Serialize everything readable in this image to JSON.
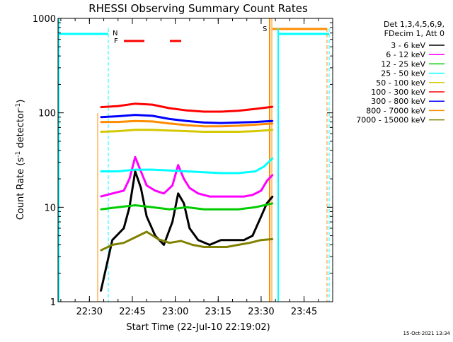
{
  "chart_data": {
    "type": "line",
    "title": "RHESSI Observing Summary Count Rates",
    "xlabel": "Start Time (22-Jul-10 22:19:02)",
    "ylabel_main": "Count Rate (s",
    "ylabel_sup1": "-1",
    "ylabel_mid": " detector",
    "ylabel_sup2": "-1",
    "ylabel_end": ")",
    "yscale": "log",
    "ylim": [
      1,
      1000
    ],
    "xlim": [
      "22:19:02",
      "23:55:00"
    ],
    "x_tick_labels": [
      "22:30",
      "22:45",
      "23:00",
      "23:15",
      "23:30",
      "23:45"
    ],
    "y_tick_labels": [
      "1",
      "10",
      "100",
      "1000"
    ],
    "legend_header": [
      "Det 1,3,4,5,6,9,",
      "FDecim 1, Att 0"
    ],
    "legend_position": "right",
    "timestamp": "15-Oct-2021 13:34",
    "series": [
      {
        "name": "3 - 6 keV",
        "color": "#000000",
        "x": [
          "22:34",
          "22:38",
          "22:42",
          "22:44",
          "22:46",
          "22:48",
          "22:50",
          "22:53",
          "22:56",
          "22:59",
          "23:01",
          "23:03",
          "23:05",
          "23:08",
          "23:12",
          "23:16",
          "23:20",
          "23:24",
          "23:27",
          "23:30",
          "23:32",
          "23:34"
        ],
        "y": [
          1.3,
          4.5,
          6,
          10,
          24,
          16,
          8,
          5,
          4,
          7,
          14,
          11,
          6,
          4.5,
          4,
          4.5,
          4.5,
          4.5,
          5,
          8,
          11,
          13
        ]
      },
      {
        "name": "6 - 12 keV",
        "color": "#ff00ff",
        "x": [
          "22:34",
          "22:38",
          "22:42",
          "22:44",
          "22:46",
          "22:48",
          "22:50",
          "22:53",
          "22:56",
          "22:59",
          "23:01",
          "23:03",
          "23:05",
          "23:08",
          "23:12",
          "23:16",
          "23:20",
          "23:24",
          "23:27",
          "23:30",
          "23:32",
          "23:34"
        ],
        "y": [
          13,
          14,
          15,
          20,
          34,
          24,
          17,
          15,
          14,
          17,
          28,
          20,
          16,
          14,
          13,
          13,
          13,
          13,
          13.5,
          15,
          19,
          22
        ]
      },
      {
        "name": "12 - 25 keV",
        "color": "#00cc00",
        "x": [
          "22:34",
          "22:40",
          "22:46",
          "22:52",
          "22:58",
          "23:04",
          "23:10",
          "23:16",
          "23:22",
          "23:28",
          "23:34"
        ],
        "y": [
          9.5,
          10,
          10.5,
          10,
          9.5,
          10,
          9.5,
          9.5,
          9.5,
          10,
          11
        ]
      },
      {
        "name": "25 - 50 keV",
        "color": "#00ffff",
        "x": [
          "22:34",
          "22:40",
          "22:46",
          "22:52",
          "22:58",
          "23:04",
          "23:10",
          "23:16",
          "23:22",
          "23:28",
          "23:31",
          "23:34"
        ],
        "y": [
          24,
          24,
          25,
          25,
          24.5,
          24,
          23.5,
          23,
          23,
          24,
          27,
          33
        ]
      },
      {
        "name": "50 - 100 keV",
        "color": "#d4c800",
        "x": [
          "22:34",
          "22:40",
          "22:46",
          "22:52",
          "22:58",
          "23:04",
          "23:10",
          "23:16",
          "23:22",
          "23:28",
          "23:34"
        ],
        "y": [
          63,
          64,
          66,
          66,
          65,
          64,
          63,
          63,
          63,
          64,
          66
        ]
      },
      {
        "name": "100 - 300 keV",
        "color": "#ff0000",
        "x": [
          "22:34",
          "22:40",
          "22:46",
          "22:52",
          "22:58",
          "23:04",
          "23:10",
          "23:16",
          "23:22",
          "23:28",
          "23:34"
        ],
        "y": [
          115,
          118,
          125,
          122,
          112,
          106,
          103,
          103,
          105,
          110,
          116
        ]
      },
      {
        "name": "300 - 800 keV",
        "color": "#0000ff",
        "x": [
          "22:34",
          "22:40",
          "22:46",
          "22:52",
          "22:58",
          "23:04",
          "23:10",
          "23:16",
          "23:22",
          "23:28",
          "23:34"
        ],
        "y": [
          90,
          92,
          95,
          93,
          86,
          82,
          79,
          78,
          79,
          80,
          82
        ]
      },
      {
        "name": "800 - 7000 keV",
        "color": "#ff8c00",
        "x": [
          "22:34",
          "22:40",
          "22:46",
          "22:52",
          "22:58",
          "23:04",
          "23:10",
          "23:16",
          "23:22",
          "23:28",
          "23:34"
        ],
        "y": [
          80,
          80,
          82,
          81,
          77,
          74,
          72,
          72,
          73,
          75,
          77
        ]
      },
      {
        "name": "7000 - 15000 keV",
        "color": "#808000",
        "x": [
          "22:34",
          "22:38",
          "22:42",
          "22:46",
          "22:50",
          "22:54",
          "22:58",
          "23:02",
          "23:06",
          "23:10",
          "23:14",
          "23:18",
          "23:22",
          "23:26",
          "23:30",
          "23:34"
        ],
        "y": [
          3.5,
          4,
          4.2,
          4.8,
          5.5,
          4.6,
          4.2,
          4.4,
          4,
          3.8,
          3.8,
          3.8,
          4,
          4.2,
          4.5,
          4.6
        ]
      }
    ],
    "markers": [
      {
        "label": "N",
        "color": "#00ffff"
      },
      {
        "label": "F",
        "color": "#ff0000"
      },
      {
        "label": "S",
        "color": "#ff8c00"
      }
    ]
  }
}
